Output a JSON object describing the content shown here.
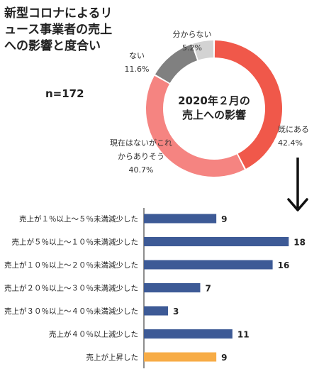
{
  "title_lines": [
    "新型コロナによるリ",
    "ュース事業者の売上",
    "への影響と度合い"
  ],
  "n_label": "n=172",
  "chart_data": [
    {
      "type": "pie",
      "title_lines": [
        "2020年２月の",
        "売上への影響"
      ],
      "slices": [
        {
          "label": "既にある",
          "value": 42.4,
          "value_text": "42.4%",
          "color": "#f0584a"
        },
        {
          "label": "現在はないがこれからありそう",
          "value": 40.7,
          "value_text": "40.7%",
          "color": "#f58481"
        },
        {
          "label": "ない",
          "value": 11.6,
          "value_text": "11.6%",
          "color": "#808080"
        },
        {
          "label": "分からない",
          "value": 5.2,
          "value_text": "5.2%",
          "color": "#d3d3d3"
        }
      ],
      "label_lines": {
        "既にある": [
          "既にある",
          "42.4%"
        ],
        "現在はないがこれからありそう": [
          "現在はないがこれ",
          "からありそう",
          "40.7%"
        ],
        "ない": [
          "ない",
          "11.6%"
        ],
        "分からない": [
          "分からない",
          "5.2%"
        ]
      }
    },
    {
      "type": "bar",
      "orientation": "horizontal",
      "categories": [
        "売上が１％以上～５％未満減少した",
        "売上が５％以上～１０％未満減少した",
        "売上が１０％以上～２０％未満減少した",
        "売上が２０％以上～３０％未満減少した",
        "売上が３０％以上～４０％未満減少した",
        "売上が４０％以上減少した",
        "売上が上昇した"
      ],
      "values": [
        9,
        18,
        16,
        7,
        3,
        11,
        9
      ],
      "colors": [
        "#3d5a96",
        "#3d5a96",
        "#3d5a96",
        "#3d5a96",
        "#3d5a96",
        "#3d5a96",
        "#f7ac46"
      ],
      "xlim": [
        0,
        20
      ]
    }
  ]
}
